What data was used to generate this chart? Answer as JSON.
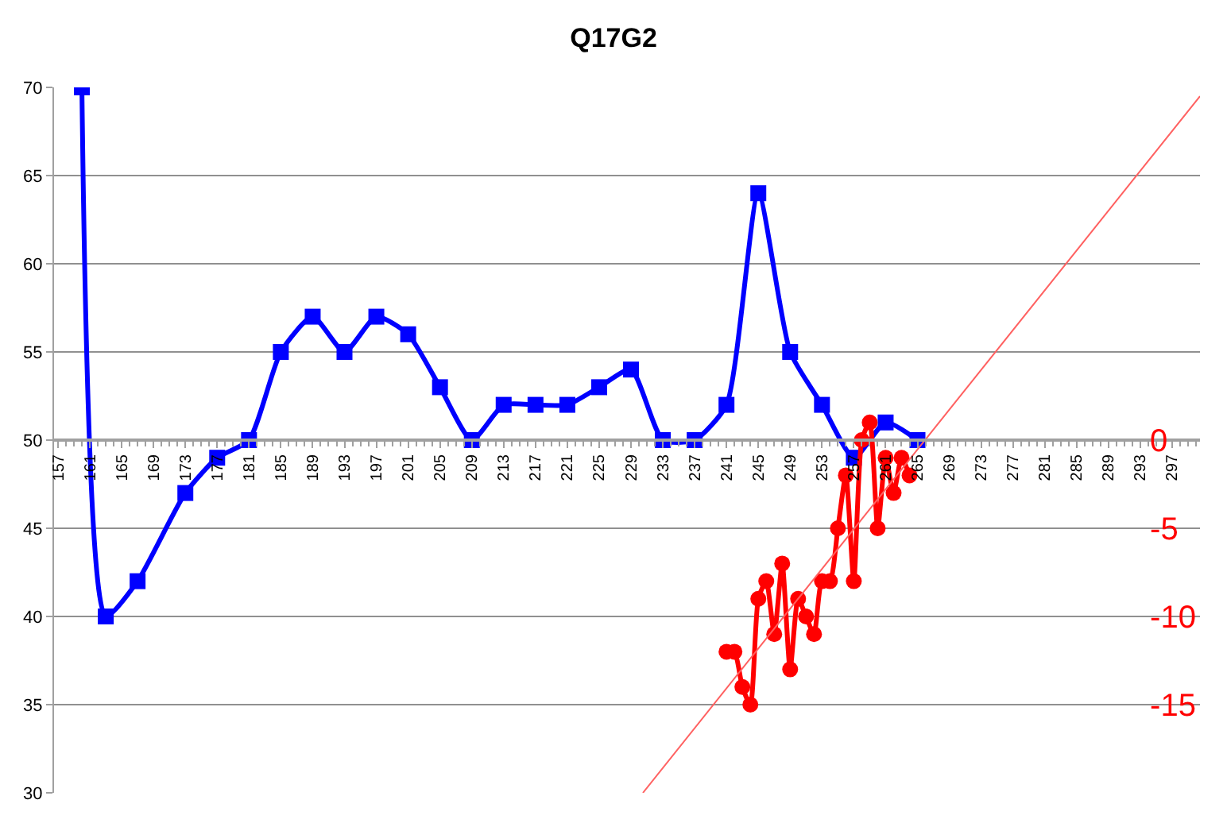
{
  "chart_data": {
    "type": "line",
    "title": "Q17G2",
    "xlim": [
      156.5,
      300.5
    ],
    "xticks": [
      157,
      161,
      165,
      169,
      173,
      177,
      181,
      185,
      189,
      193,
      197,
      201,
      205,
      209,
      213,
      217,
      221,
      225,
      229,
      233,
      237,
      241,
      245,
      249,
      253,
      257,
      261,
      265,
      269,
      273,
      277,
      281,
      285,
      289,
      293,
      297
    ],
    "ylim": [
      30,
      70
    ],
    "yticks": [
      30,
      35,
      40,
      45,
      50,
      55,
      60,
      65,
      70
    ],
    "y2lim": [
      -20,
      20
    ],
    "y2ticks": [
      0,
      -5,
      -10,
      -15
    ],
    "grid": "y",
    "series": [
      {
        "color": "#0000ff",
        "marker": "square",
        "line_style": "solid",
        "x": [
          160,
          163,
          167,
          173,
          177,
          181,
          185,
          189,
          193,
          197,
          201,
          205,
          209,
          213,
          217,
          221,
          225,
          229,
          233,
          237,
          241,
          245,
          249,
          253,
          257,
          261,
          265
        ],
        "values": [
          70,
          40,
          42,
          47,
          49,
          50,
          55,
          57,
          55,
          57,
          56,
          53,
          50,
          52,
          52,
          52,
          53,
          54,
          50,
          50,
          52,
          64,
          55,
          52,
          49,
          51,
          50
        ]
      },
      {
        "color": "#ff0000",
        "marker": "circle",
        "line_style": "solid",
        "axis": "y2",
        "x": [
          241,
          242,
          243,
          244,
          245,
          246,
          247,
          248,
          249,
          250,
          251,
          252,
          253,
          254,
          255,
          256,
          257,
          258,
          259,
          260,
          261,
          262,
          263,
          264
        ],
        "values": [
          -12,
          -12,
          -14,
          -15,
          -9,
          -8,
          -11,
          -7,
          -13,
          -9,
          -10,
          -11,
          -8,
          -8,
          -5,
          -2,
          -8,
          0,
          1,
          -5,
          -1,
          -3,
          -1,
          -2
        ]
      },
      {
        "color": "#ff6060",
        "marker": "none",
        "line_style": "solid",
        "axis": "y2",
        "x": [
          230.5,
          300.5
        ],
        "values": [
          -20,
          19.5
        ]
      }
    ]
  }
}
